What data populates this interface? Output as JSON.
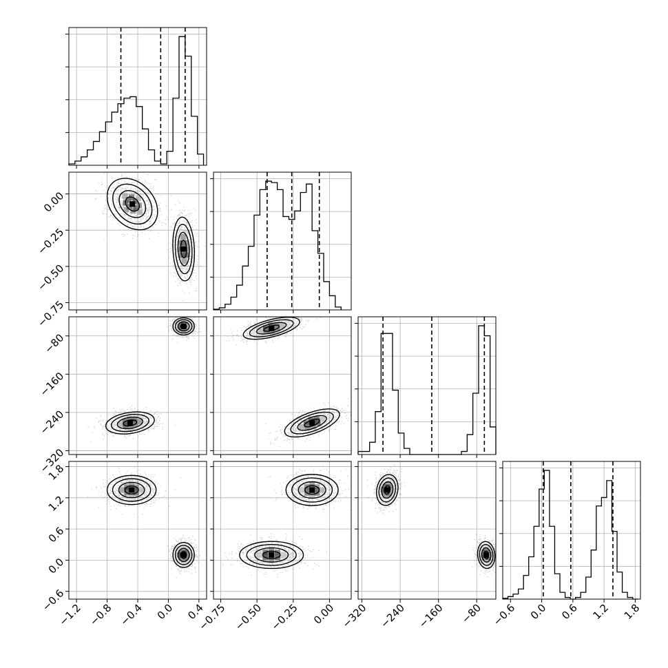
{
  "chart_data": {
    "type": "corner",
    "colors": {
      "points": "#555555",
      "contour_line": "#000000",
      "hist_line": "#000000",
      "grid": "#b0b0b0"
    },
    "grid": true,
    "parameters": [
      {
        "range": [
          -1.3,
          0.5
        ],
        "ticks": [
          -1.2,
          -0.8,
          -0.4,
          0.0,
          0.4
        ],
        "tick_labels": [
          "−1.2",
          "−0.8",
          "−0.4",
          "0.0",
          "0.4"
        ],
        "quantiles": [
          -0.62,
          -0.1,
          0.22
        ],
        "histogram": {
          "edges": [
            -1.3,
            -1.22,
            -1.14,
            -1.06,
            -0.98,
            -0.9,
            -0.82,
            -0.74,
            -0.66,
            -0.58,
            -0.5,
            -0.42,
            -0.34,
            -0.26,
            -0.18,
            -0.1,
            -0.02,
            0.06,
            0.14,
            0.22,
            0.3,
            0.38,
            0.46
          ],
          "counts": [
            1,
            3,
            6,
            11,
            17,
            24,
            31,
            38,
            44,
            48,
            49,
            42,
            26,
            11,
            3,
            1,
            10,
            48,
            92,
            78,
            35,
            8
          ]
        }
      },
      {
        "range": [
          -0.8,
          0.15
        ],
        "ticks": [
          -0.75,
          -0.5,
          -0.25,
          0.0
        ],
        "tick_labels": [
          "−0.75",
          "−0.50",
          "−0.25",
          "0.00"
        ],
        "quantiles": [
          -0.43,
          -0.26,
          -0.07
        ],
        "histogram": {
          "edges": [
            -0.8,
            -0.76,
            -0.72,
            -0.68,
            -0.64,
            -0.6,
            -0.56,
            -0.52,
            -0.48,
            -0.44,
            -0.4,
            -0.36,
            -0.32,
            -0.28,
            -0.24,
            -0.2,
            -0.16,
            -0.12,
            -0.08,
            -0.04,
            0.0,
            0.04,
            0.08
          ],
          "counts": [
            1,
            3,
            8,
            18,
            35,
            62,
            90,
            134,
            170,
            182,
            180,
            170,
            132,
            128,
            140,
            166,
            178,
            112,
            80,
            40,
            20,
            4
          ]
        }
      },
      {
        "range": [
          -328,
          -40
        ],
        "ticks": [
          -320,
          -240,
          -160,
          -80
        ],
        "tick_labels": [
          "−320",
          "−240",
          "−160",
          "−80"
        ],
        "quantiles": [
          -276,
          -174,
          -64
        ],
        "histogram": {
          "edges": [
            -328,
            -316,
            -304,
            -292,
            -280,
            -268,
            -256,
            -244,
            -232,
            -220,
            -208,
            -196,
            -184,
            -172,
            -160,
            -148,
            -136,
            -124,
            -112,
            -100,
            -88,
            -76,
            -64,
            -52,
            -40
          ],
          "counts": [
            4,
            4,
            16,
            56,
            158,
            158,
            84,
            28,
            8,
            0,
            0,
            0,
            0,
            0,
            0,
            0,
            0,
            0,
            4,
            26,
            80,
            168,
            155,
            36
          ]
        }
      },
      {
        "range": [
          -0.75,
          1.9
        ],
        "ticks": [
          -0.6,
          0.0,
          0.6,
          1.2,
          1.8
        ],
        "tick_labels": [
          "−0.6",
          "0.0",
          "0.6",
          "1.2",
          "1.8"
        ],
        "quantiles": [
          0.03,
          0.56,
          1.37
        ],
        "histogram": {
          "edges": [
            -0.75,
            -0.65,
            -0.55,
            -0.45,
            -0.35,
            -0.25,
            -0.15,
            -0.05,
            0.05,
            0.15,
            0.25,
            0.35,
            0.45,
            0.55,
            0.65,
            0.75,
            0.85,
            0.95,
            1.05,
            1.15,
            1.25,
            1.35,
            1.45,
            1.55,
            1.65,
            1.75,
            1.85
          ],
          "counts": [
            1,
            3,
            6,
            12,
            28,
            50,
            86,
            130,
            152,
            86,
            30,
            8,
            2,
            0,
            2,
            8,
            26,
            58,
            110,
            120,
            140,
            80,
            32,
            8,
            2,
            0
          ]
        }
      }
    ],
    "tick_labels_y": {
      "1": [
        "0.00",
        "−0.25",
        "−0.50",
        "−0.75"
      ],
      "2": [
        "−80",
        "−160",
        "−240",
        "−320"
      ],
      "3": [
        "1.8",
        "1.2",
        "0.6",
        "0.0",
        "−0.6"
      ]
    },
    "clusters": [
      {
        "params": [
          0,
          1
        ],
        "centers": [
          [
            -0.47,
            -0.07
          ],
          [
            0.2,
            -0.38
          ]
        ],
        "sx": [
          0.14,
          0.07
        ],
        "sy": [
          0.1,
          0.11
        ],
        "rot": [
          0.75,
          0.05
        ]
      },
      {
        "params": [
          0,
          2
        ],
        "centers": [
          [
            0.2,
            -60
          ],
          [
            -0.5,
            -262
          ]
        ],
        "sx": [
          0.07,
          0.16
        ],
        "sy": [
          9,
          11
        ],
        "rot": [
          0.0,
          0.15
        ]
      },
      {
        "params": [
          1,
          2
        ],
        "centers": [
          [
            -0.4,
            -64
          ],
          [
            -0.12,
            -262
          ]
        ],
        "sx": [
          0.1,
          0.1
        ],
        "sy": [
          9,
          11
        ],
        "rot": [
          0.25,
          0.35
        ]
      },
      {
        "params": [
          0,
          3
        ],
        "centers": [
          [
            -0.48,
            1.35
          ],
          [
            0.2,
            0.1
          ]
        ],
        "sx": [
          0.16,
          0.07
        ],
        "sy": [
          0.14,
          0.12
        ],
        "rot": [
          0.0,
          0.0
        ]
      },
      {
        "params": [
          1,
          3
        ],
        "centers": [
          [
            -0.12,
            1.35
          ],
          [
            -0.4,
            0.1
          ]
        ],
        "sx": [
          0.09,
          0.11
        ],
        "sy": [
          0.15,
          0.13
        ],
        "rot": [
          0.0,
          0.0
        ]
      },
      {
        "params": [
          2,
          3
        ],
        "centers": [
          [
            -267,
            1.35
          ],
          [
            -60,
            0.1
          ]
        ],
        "sx": [
          11,
          9
        ],
        "sy": [
          0.15,
          0.13
        ],
        "rot": [
          -0.2,
          0.1
        ]
      }
    ]
  }
}
